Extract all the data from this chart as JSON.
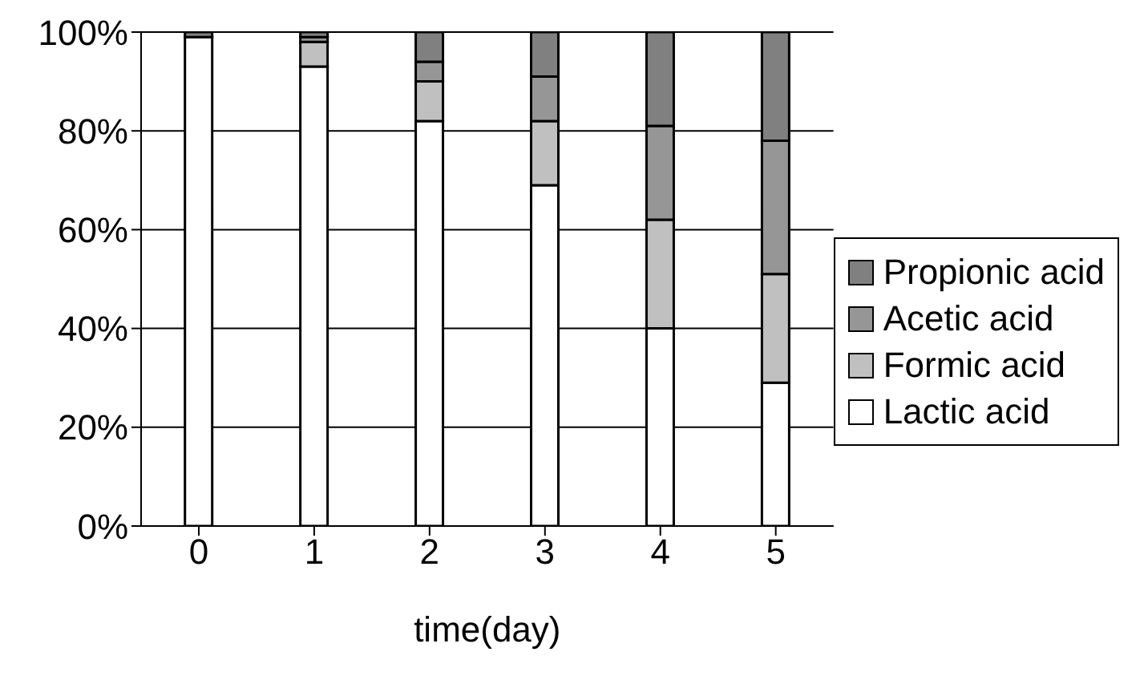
{
  "chart_data": {
    "type": "bar",
    "stacked": true,
    "xlabel": "time(day)",
    "categories": [
      "0",
      "1",
      "2",
      "3",
      "4",
      "5"
    ],
    "series": [
      {
        "name": "Lactic acid",
        "color": "#ffffff",
        "values": [
          99,
          93,
          82,
          69,
          40,
          29
        ]
      },
      {
        "name": "Formic acid",
        "color": "#c0c0c0",
        "values": [
          0,
          5,
          8,
          13,
          22,
          22
        ]
      },
      {
        "name": "Acetic acid",
        "color": "#969696",
        "values": [
          0,
          1,
          4,
          9,
          19,
          27
        ]
      },
      {
        "name": "Propionic acid",
        "color": "#808080",
        "values": [
          1,
          1,
          6,
          9,
          19,
          22
        ]
      }
    ],
    "ylim": [
      0,
      100
    ],
    "yticks": [
      {
        "value": 0,
        "label": "0%"
      },
      {
        "value": 20,
        "label": "20%"
      },
      {
        "value": 40,
        "label": "40%"
      },
      {
        "value": 60,
        "label": "60%"
      },
      {
        "value": 80,
        "label": "80%"
      },
      {
        "value": 100,
        "label": "100%"
      }
    ],
    "grid": "y",
    "legend": "right"
  }
}
